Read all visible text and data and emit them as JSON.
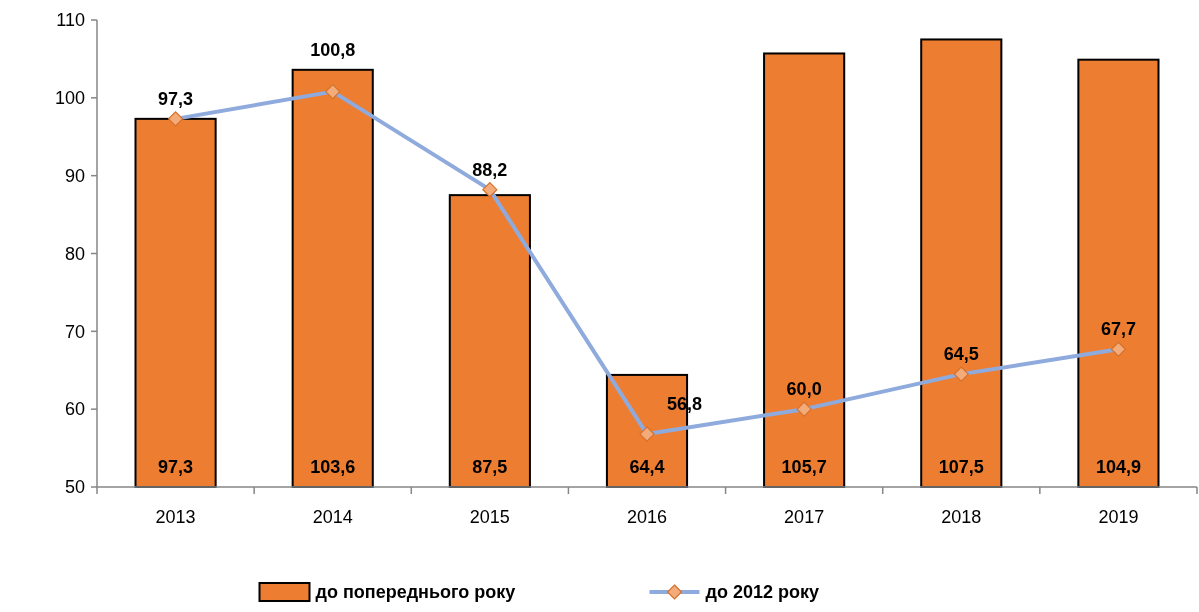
{
  "chart_data": {
    "type": "bar",
    "categories": [
      "2013",
      "2014",
      "2015",
      "2016",
      "2017",
      "2018",
      "2019"
    ],
    "series": [
      {
        "name": "до попереднього року",
        "color": "#ed7d31",
        "values": [
          97.3,
          103.6,
          87.5,
          64.4,
          105.7,
          107.5,
          104.9
        ],
        "value_labels": [
          "97,3",
          "103,6",
          "87,5",
          "64,4",
          "105,7",
          "107,5",
          "104,9"
        ]
      },
      {
        "name": "до 2012 року",
        "type": "line",
        "color": "#8faadc",
        "marker": "diamond",
        "values": [
          97.3,
          100.8,
          88.2,
          56.8,
          60.0,
          64.5,
          67.7
        ],
        "value_labels": [
          "97,3",
          "100,8",
          "88,2",
          "56,8",
          "60,0",
          "64,5",
          "67,7"
        ]
      }
    ],
    "ylim": [
      50,
      110
    ],
    "yticks": [
      50,
      60,
      70,
      80,
      90,
      100,
      110
    ],
    "grid": false,
    "legend": "bottom"
  }
}
